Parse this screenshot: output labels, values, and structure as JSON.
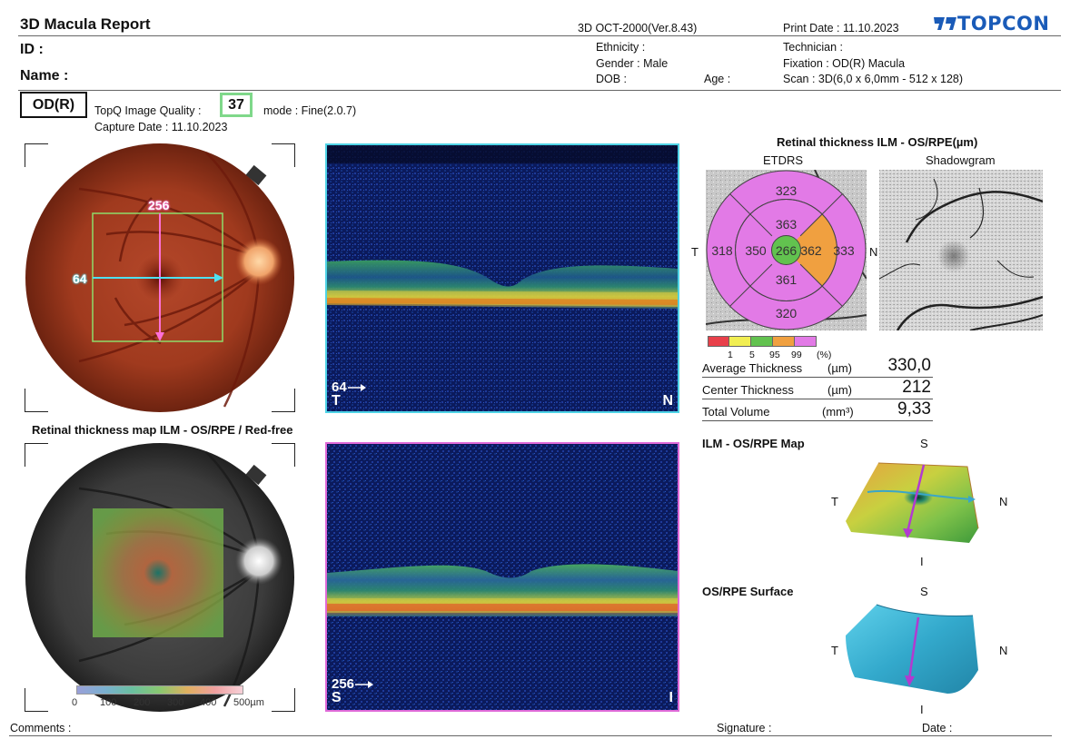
{
  "header": {
    "title": "3D Macula Report",
    "device": "3D OCT-2000(Ver.8.43)",
    "print_date": "Print Date : 11.10.2023",
    "logo": "TOPCON",
    "id_label": "ID :",
    "name_label": "Name :",
    "ethnicity": "Ethnicity :",
    "gender": "Gender : Male",
    "dob": "DOB :",
    "age": "Age :",
    "technician": "Technician :",
    "fixation": "Fixation : OD(R) Macula",
    "scan": "Scan : 3D(6,0 x 6,0mm - 512 x 128)"
  },
  "eye": {
    "badge": "OD(R)",
    "quality_label": "TopQ Image Quality :",
    "quality_value": "37",
    "mode": "mode : Fine(2.0.7)",
    "capture_date": "Capture Date : 11.10.2023"
  },
  "fundus": {
    "h_line_label": "64",
    "v_line_label": "256"
  },
  "oct_top": {
    "scan_label": "64",
    "left_dir": "T",
    "right_dir": "N",
    "border_color": "#4fd3e6"
  },
  "oct_bottom": {
    "scan_label": "256",
    "left_dir": "S",
    "right_dir": "I",
    "border_color": "#e06ad8"
  },
  "thickness_map": {
    "title": "Retinal thickness map ILM - OS/RPE / Red-free",
    "scale_labels": [
      "0",
      "100",
      "200",
      "300",
      "400",
      "500µm"
    ]
  },
  "etdrs": {
    "section_title": "Retinal thickness ILM - OS/RPE(µm)",
    "etdrs_label": "ETDRS",
    "shadowgram_label": "Shadowgram",
    "t_label": "T",
    "n_label": "N",
    "values": {
      "outer_superior": "323",
      "outer_temporal": "318",
      "outer_nasal": "333",
      "outer_inferior": "320",
      "inner_superior": "363",
      "inner_temporal": "350",
      "inner_nasal": "362",
      "inner_inferior": "361",
      "center": "266"
    },
    "percentile_labels": [
      "1",
      "5",
      "95",
      "99",
      "(%)"
    ],
    "percentile_colors": [
      "#e8404a",
      "#f1ee52",
      "#62c24f",
      "#f0a040",
      "#e27ae6"
    ]
  },
  "measurements": [
    {
      "label": "Average Thickness",
      "unit": "(µm)",
      "value": "330,0"
    },
    {
      "label": "Center Thickness",
      "unit": "(µm)",
      "value": "212"
    },
    {
      "label": "Total Volume",
      "unit": "(mm³)",
      "value": "9,33"
    }
  ],
  "map3d": {
    "title": "ILM - OS/RPE Map",
    "s": "S",
    "t": "T",
    "n": "N",
    "i": "I"
  },
  "surface3d": {
    "title": "OS/RPE Surface",
    "s": "S",
    "t": "T",
    "n": "N",
    "i": "I"
  },
  "footer": {
    "comments": "Comments :",
    "signature": "Signature :",
    "date": "Date :"
  }
}
